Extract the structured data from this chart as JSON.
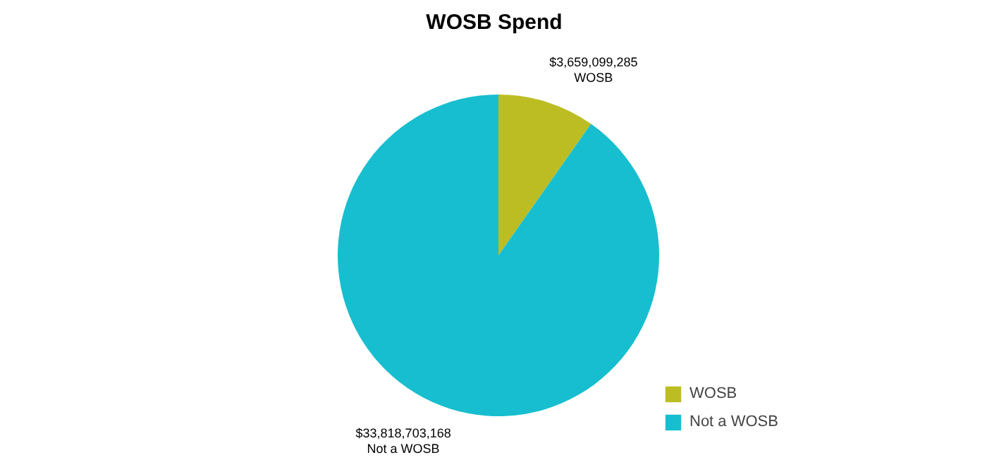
{
  "chart_data": {
    "type": "pie",
    "title": "WOSB Spend",
    "categories": [
      "WOSB",
      "Not a WOSB"
    ],
    "values": [
      3659099285,
      33818703168
    ],
    "colors": [
      "#bcbd22",
      "#17becf"
    ],
    "value_labels": [
      "$3,659,099,285",
      "$33,818,703,168"
    ],
    "legend": "bottom right"
  }
}
